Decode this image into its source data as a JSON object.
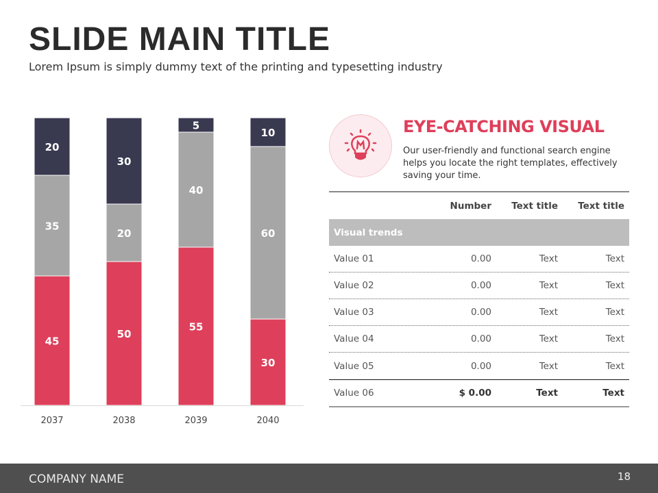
{
  "header": {
    "title": "SLIDE MAIN TITLE",
    "subtitle": "Lorem Ipsum is simply dummy text of the printing and typesetting industry"
  },
  "chart_data": {
    "type": "bar",
    "stacked": true,
    "categories": [
      "2037",
      "2038",
      "2039",
      "2040"
    ],
    "series": [
      {
        "values": [
          45,
          50,
          55,
          30
        ],
        "color": "#de3f5a"
      },
      {
        "values": [
          35,
          20,
          40,
          60
        ],
        "color": "#a6a6a6"
      },
      {
        "values": [
          20,
          30,
          5,
          10
        ],
        "color": "#393a50"
      }
    ],
    "ylim": [
      0,
      100
    ],
    "grid": false,
    "legend": "none"
  },
  "visual": {
    "icon": "lightbulb-icon",
    "title": "EYE-CATCHING VISUAL",
    "description": "Our user-friendly and functional search engine helps you locate the right templates, effectively saving your time."
  },
  "table": {
    "headers": [
      "",
      "Number",
      "Text title",
      "Text title"
    ],
    "section": "Visual trends",
    "rows": [
      [
        "Value 01",
        "0.00",
        "Text",
        "Text"
      ],
      [
        "Value 02",
        "0.00",
        "Text",
        "Text"
      ],
      [
        "Value 03",
        "0.00",
        "Text",
        "Text"
      ],
      [
        "Value 04",
        "0.00",
        "Text",
        "Text"
      ],
      [
        "Value 05",
        "0.00",
        "Text",
        "Text"
      ],
      [
        "Value 06",
        "$ 0.00",
        "Text",
        "Text"
      ]
    ]
  },
  "footer": {
    "company": "COMPANY NAME",
    "page": "18"
  },
  "colors": {
    "accent": "#de3f5a",
    "dark": "#393a50",
    "gray": "#a6a6a6"
  }
}
